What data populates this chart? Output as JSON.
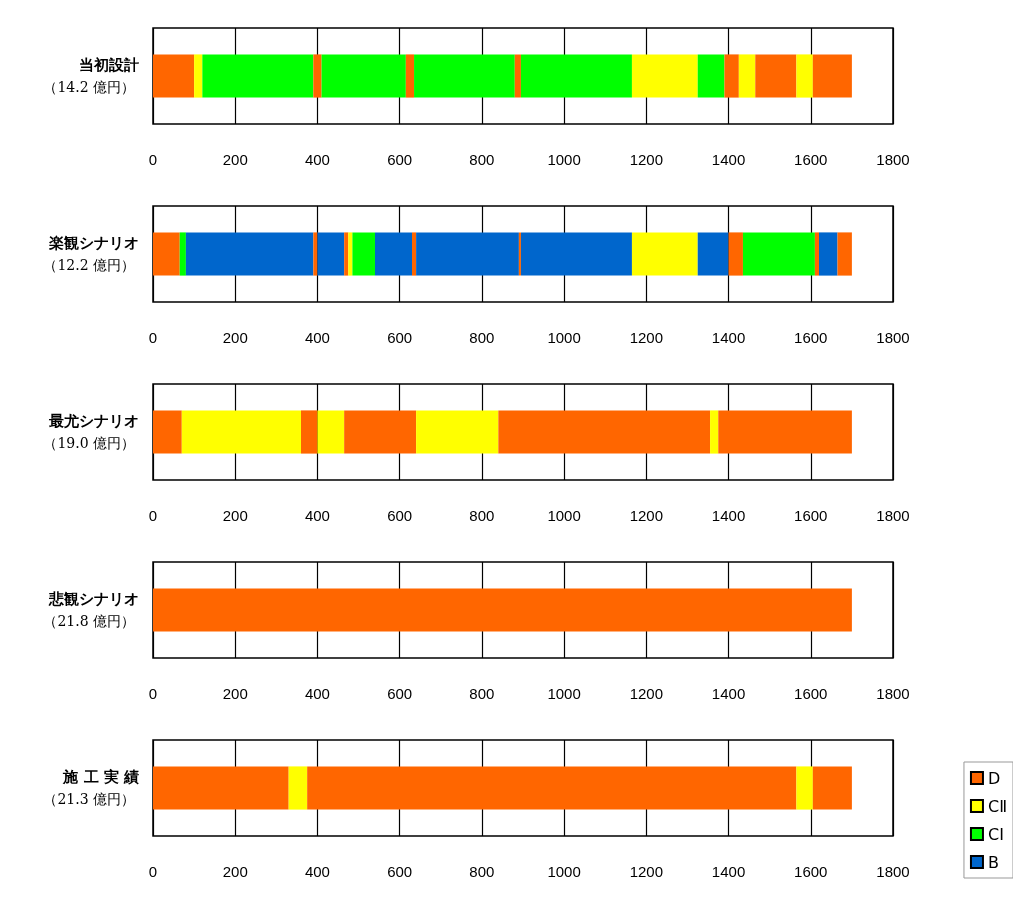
{
  "chart_data": [
    {
      "type": "bar",
      "orientation": "horizontal",
      "stacked": true,
      "categories": [
        "当初設計"
      ],
      "subtitle": "（14.2 億円）",
      "xlim": [
        0,
        1800
      ],
      "xticks": [
        0,
        200,
        400,
        600,
        800,
        1000,
        1200,
        1400,
        1600,
        1800
      ],
      "grid": "x",
      "series": [
        {
          "color": "#ff6600",
          "values": [
            100
          ]
        },
        {
          "color": "#ffff00",
          "values": [
            20
          ]
        },
        {
          "color": "#00ff00",
          "values": [
            270
          ]
        },
        {
          "color": "#ff6600",
          "values": [
            20
          ]
        },
        {
          "color": "#00ff00",
          "values": [
            205
          ]
        },
        {
          "color": "#ff6600",
          "values": [
            20
          ]
        },
        {
          "color": "#00ff00",
          "values": [
            245
          ]
        },
        {
          "color": "#ff6600",
          "values": [
            15
          ]
        },
        {
          "color": "#00ff00",
          "values": [
            270
          ]
        },
        {
          "color": "#ffff00",
          "values": [
            160
          ]
        },
        {
          "color": "#00ff00",
          "values": [
            65
          ]
        },
        {
          "color": "#ff6600",
          "values": [
            35
          ]
        },
        {
          "color": "#ffff00",
          "values": [
            40
          ]
        },
        {
          "color": "#ff6600",
          "values": [
            100
          ]
        },
        {
          "color": "#ffff00",
          "values": [
            40
          ]
        },
        {
          "color": "#ff6600",
          "values": [
            95
          ]
        }
      ]
    },
    {
      "type": "bar",
      "orientation": "horizontal",
      "stacked": true,
      "categories": [
        "楽観シナリオ"
      ],
      "subtitle": "（12.2 億円）",
      "xlim": [
        0,
        1800
      ],
      "xticks": [
        0,
        200,
        400,
        600,
        800,
        1000,
        1200,
        1400,
        1600,
        1800
      ],
      "grid": "x",
      "series": [
        {
          "color": "#ff6600",
          "values": [
            65
          ]
        },
        {
          "color": "#00ff00",
          "values": [
            15
          ]
        },
        {
          "color": "#0066cc",
          "values": [
            310
          ]
        },
        {
          "color": "#ff6600",
          "values": [
            10
          ]
        },
        {
          "color": "#0066cc",
          "values": [
            65
          ]
        },
        {
          "color": "#ff6600",
          "values": [
            10
          ]
        },
        {
          "color": "#ffff00",
          "values": [
            10
          ]
        },
        {
          "color": "#00ff00",
          "values": [
            55
          ]
        },
        {
          "color": "#0066cc",
          "values": [
            90
          ]
        },
        {
          "color": "#ff6600",
          "values": [
            10
          ]
        },
        {
          "color": "#0066cc",
          "values": [
            250
          ]
        },
        {
          "color": "#ff6600",
          "values": [
            5
          ]
        },
        {
          "color": "#0066cc",
          "values": [
            270
          ]
        },
        {
          "color": "#ffff00",
          "values": [
            160
          ]
        },
        {
          "color": "#0066cc",
          "values": [
            75
          ]
        },
        {
          "color": "#ff6600",
          "values": [
            35
          ]
        },
        {
          "color": "#00ff00",
          "values": [
            175
          ]
        },
        {
          "color": "#ff6600",
          "values": [
            10
          ]
        },
        {
          "color": "#0066cc",
          "values": [
            45
          ]
        },
        {
          "color": "#ff6600",
          "values": [
            35
          ]
        }
      ]
    },
    {
      "type": "bar",
      "orientation": "horizontal",
      "stacked": true,
      "categories": [
        "最尤シナリオ"
      ],
      "subtitle": "（19.0 億円）",
      "xlim": [
        0,
        1800
      ],
      "xticks": [
        0,
        200,
        400,
        600,
        800,
        1000,
        1200,
        1400,
        1600,
        1800
      ],
      "grid": "x",
      "series": [
        {
          "color": "#ff6600",
          "values": [
            70
          ]
        },
        {
          "color": "#ffff00",
          "values": [
            290
          ]
        },
        {
          "color": "#ff6600",
          "values": [
            40
          ]
        },
        {
          "color": "#ffff00",
          "values": [
            65
          ]
        },
        {
          "color": "#ff6600",
          "values": [
            175
          ]
        },
        {
          "color": "#ffff00",
          "values": [
            200
          ]
        },
        {
          "color": "#ff6600",
          "values": [
            515
          ]
        },
        {
          "color": "#ffff00",
          "values": [
            20
          ]
        },
        {
          "color": "#ff6600",
          "values": [
            325
          ]
        }
      ]
    },
    {
      "type": "bar",
      "orientation": "horizontal",
      "stacked": true,
      "categories": [
        "悲観シナリオ"
      ],
      "subtitle": "（21.8 億円）",
      "xlim": [
        0,
        1800
      ],
      "xticks": [
        0,
        200,
        400,
        600,
        800,
        1000,
        1200,
        1400,
        1600,
        1800
      ],
      "grid": "x",
      "series": [
        {
          "color": "#ff6600",
          "values": [
            1700
          ]
        }
      ]
    },
    {
      "type": "bar",
      "orientation": "horizontal",
      "stacked": true,
      "categories": [
        "施 工 実 績"
      ],
      "subtitle": "（21.3 億円）",
      "xlim": [
        0,
        1800
      ],
      "xticks": [
        0,
        200,
        400,
        600,
        800,
        1000,
        1200,
        1400,
        1600,
        1800
      ],
      "grid": "x",
      "legend": "bottom right",
      "series": [
        {
          "name": "D",
          "color": "#ff6600",
          "values": [
            330
          ]
        },
        {
          "name": "CⅡ",
          "color": "#ffff00",
          "values": [
            45
          ]
        },
        {
          "color": "#ff6600",
          "values": [
            1190
          ]
        },
        {
          "color": "#ffff00",
          "values": [
            40
          ]
        },
        {
          "color": "#ff6600",
          "values": [
            95
          ]
        },
        {
          "name": "CⅠ",
          "color": "#00ff00",
          "values": [
            null
          ]
        },
        {
          "name": "B",
          "color": "#0066cc",
          "values": [
            null
          ]
        }
      ]
    }
  ]
}
